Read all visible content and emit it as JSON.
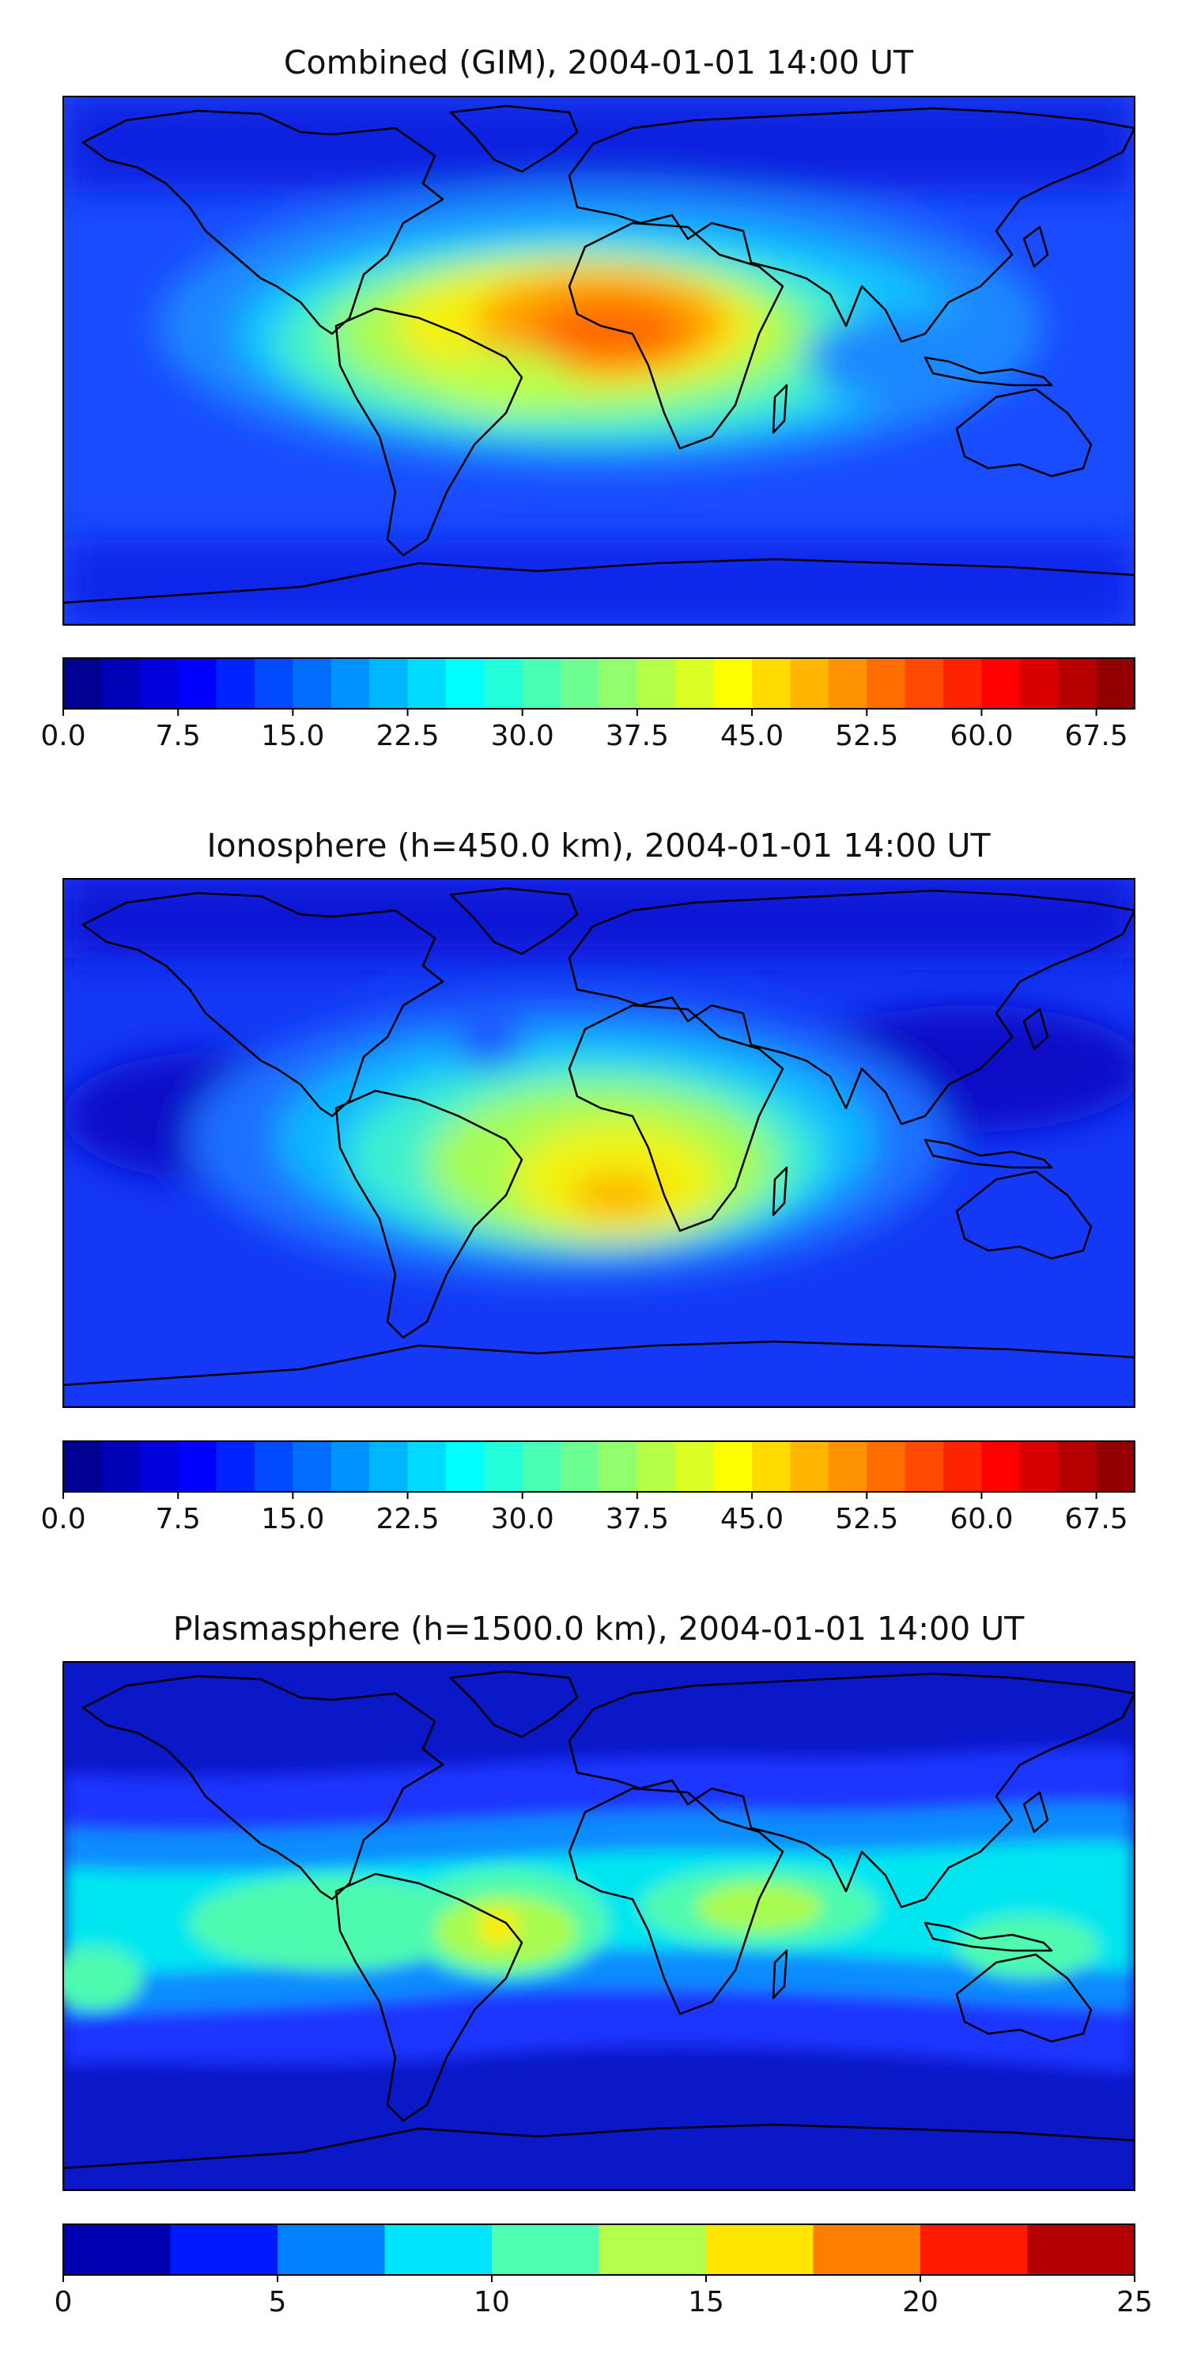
{
  "panels": [
    {
      "title": "Combined (GIM), 2004-01-01 14:00 UT",
      "map_kind": "combined",
      "colorbar": {
        "min": 0.0,
        "max": 70.0,
        "step": 2.5,
        "ticks": [
          "0.0",
          "7.5",
          "15.0",
          "22.5",
          "30.0",
          "37.5",
          "45.0",
          "52.5",
          "60.0",
          "67.5"
        ],
        "tick_values": [
          0,
          7.5,
          15,
          22.5,
          30,
          37.5,
          45,
          52.5,
          60,
          67.5
        ]
      }
    },
    {
      "title": "Ionosphere  (h=450.0 km), 2004-01-01 14:00 UT",
      "map_kind": "ionosphere",
      "colorbar": {
        "min": 0.0,
        "max": 70.0,
        "step": 2.5,
        "ticks": [
          "0.0",
          "7.5",
          "15.0",
          "22.5",
          "30.0",
          "37.5",
          "45.0",
          "52.5",
          "60.0",
          "67.5"
        ],
        "tick_values": [
          0,
          7.5,
          15,
          22.5,
          30,
          37.5,
          45,
          52.5,
          60,
          67.5
        ]
      }
    },
    {
      "title": "Plasmasphere (h=1500.0 km), 2004-01-01 14:00 UT",
      "map_kind": "plasmasphere",
      "colorbar": {
        "min": 0,
        "max": 25,
        "step": 2.5,
        "ticks": [
          "0",
          "5",
          "10",
          "15",
          "20",
          "25"
        ],
        "tick_values": [
          0,
          5,
          10,
          15,
          20,
          25
        ]
      }
    }
  ]
}
